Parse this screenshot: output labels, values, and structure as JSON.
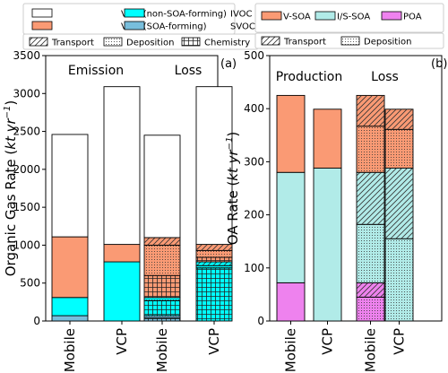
{
  "chart_data": [
    {
      "type": "bar",
      "panel_label": "(a)",
      "ylabel_main": "Organic Gas Rate",
      "ylabel_unit_base": "kt yr",
      "ylabel_unit_exp": "−1",
      "ylim": [
        0,
        3500
      ],
      "yticks": [
        "0",
        "500",
        "1000",
        "1500",
        "2000",
        "2500",
        "3000",
        "3500"
      ],
      "xticks": [
        "Mobile",
        "VCP",
        "Mobile",
        "VCP"
      ],
      "group_labels": [
        "Emission",
        "Loss"
      ],
      "legend_species": [
        {
          "label": "VOC (non-SOA-forming)",
          "color": "#ffffff"
        },
        {
          "label": "IVOC",
          "color": "#00ffff"
        },
        {
          "label": "VOC (SOA-forming)",
          "color": "#fa9a74"
        },
        {
          "label": "SVOC",
          "color": "#78bedc"
        }
      ],
      "legend_pathways": [
        {
          "label": "Transport",
          "pattern": "hatch"
        },
        {
          "label": "Deposition",
          "pattern": "dots"
        },
        {
          "label": "Chemistry",
          "pattern": "grid"
        }
      ],
      "bars": [
        {
          "category": "Mobile",
          "group": "Emission",
          "segments": [
            {
              "species": "SVOC",
              "value": 70
            },
            {
              "species": "IVOC",
              "value": 240
            },
            {
              "species": "VOC (SOA-forming)",
              "value": 800
            },
            {
              "species": "VOC (non-SOA-forming)",
              "value": 1350
            }
          ]
        },
        {
          "category": "VCP",
          "group": "Emission",
          "segments": [
            {
              "species": "IVOC",
              "value": 780
            },
            {
              "species": "VOC (SOA-forming)",
              "value": 230
            },
            {
              "species": "VOC (non-SOA-forming)",
              "value": 2080
            }
          ]
        },
        {
          "category": "Mobile",
          "group": "Loss",
          "segments": [
            {
              "species": "SVOC",
              "pathway": "Chemistry",
              "value": 40
            },
            {
              "species": "SVOC",
              "pathway": "Deposition",
              "value": 30
            },
            {
              "species": "IVOC",
              "pathway": "Chemistry",
              "value": 200
            },
            {
              "species": "IVOC",
              "pathway": "Deposition",
              "value": 40
            },
            {
              "species": "VOC (SOA-forming)",
              "pathway": "Chemistry",
              "value": 290
            },
            {
              "species": "VOC (SOA-forming)",
              "pathway": "Deposition",
              "value": 400
            },
            {
              "species": "VOC (SOA-forming)",
              "pathway": "Transport",
              "value": 100
            },
            {
              "species": "VOC (non-SOA-forming)",
              "value": 1350
            }
          ]
        },
        {
          "category": "VCP",
          "group": "Loss",
          "segments": [
            {
              "species": "IVOC",
              "pathway": "Chemistry",
              "value": 700
            },
            {
              "species": "IVOC",
              "pathway": "Deposition",
              "value": 30
            },
            {
              "species": "IVOC",
              "pathway": "Transport",
              "value": 50
            },
            {
              "species": "VOC (SOA-forming)",
              "pathway": "Chemistry",
              "value": 60
            },
            {
              "species": "VOC (SOA-forming)",
              "pathway": "Deposition",
              "value": 90
            },
            {
              "species": "VOC (SOA-forming)",
              "pathway": "Transport",
              "value": 80
            },
            {
              "species": "VOC (non-SOA-forming)",
              "value": 2080
            }
          ]
        }
      ]
    },
    {
      "type": "bar",
      "panel_label": "(b)",
      "ylabel_main": "OA Rate",
      "ylabel_unit_base": "kt yr",
      "ylabel_unit_exp": "−1",
      "ylim": [
        0,
        500
      ],
      "yticks": [
        "0",
        "100",
        "200",
        "300",
        "400",
        "500"
      ],
      "xticks": [
        "Mobile",
        "VCP",
        "Mobile",
        "VCP"
      ],
      "group_labels": [
        "Production",
        "Loss"
      ],
      "legend_species": [
        {
          "label": "V-SOA",
          "color": "#fa9a74"
        },
        {
          "label": "I/S-SOA",
          "color": "#b1ebe8"
        },
        {
          "label": "POA",
          "color": "#ee82ee"
        }
      ],
      "legend_pathways": [
        {
          "label": "Transport",
          "pattern": "hatch"
        },
        {
          "label": "Deposition",
          "pattern": "dots"
        }
      ],
      "bars": [
        {
          "category": "Mobile",
          "group": "Production",
          "segments": [
            {
              "species": "POA",
              "value": 72
            },
            {
              "species": "I/S-SOA",
              "value": 208
            },
            {
              "species": "V-SOA",
              "value": 145
            }
          ]
        },
        {
          "category": "VCP",
          "group": "Production",
          "segments": [
            {
              "species": "I/S-SOA",
              "value": 288
            },
            {
              "species": "V-SOA",
              "value": 111
            }
          ]
        },
        {
          "category": "Mobile",
          "group": "Loss",
          "segments": [
            {
              "species": "POA",
              "pathway": "Deposition",
              "value": 45
            },
            {
              "species": "POA",
              "pathway": "Transport",
              "value": 27
            },
            {
              "species": "I/S-SOA",
              "pathway": "Deposition",
              "value": 110
            },
            {
              "species": "I/S-SOA",
              "pathway": "Transport",
              "value": 98
            },
            {
              "species": "V-SOA",
              "pathway": "Deposition",
              "value": 87
            },
            {
              "species": "V-SOA",
              "pathway": "Transport",
              "value": 58
            }
          ]
        },
        {
          "category": "VCP",
          "group": "Loss",
          "segments": [
            {
              "species": "I/S-SOA",
              "pathway": "Deposition",
              "value": 155
            },
            {
              "species": "I/S-SOA",
              "pathway": "Transport",
              "value": 133
            },
            {
              "species": "V-SOA",
              "pathway": "Deposition",
              "value": 73
            },
            {
              "species": "V-SOA",
              "pathway": "Transport",
              "value": 38
            }
          ]
        }
      ]
    }
  ]
}
